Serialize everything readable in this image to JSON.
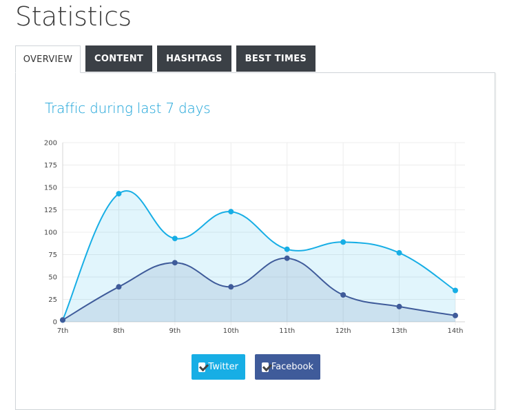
{
  "page": {
    "title": "Statistics"
  },
  "tabs": [
    {
      "label": "OVERVIEW",
      "active": true
    },
    {
      "label": "CONTENT",
      "active": false
    },
    {
      "label": "HASHTAGS",
      "active": false
    },
    {
      "label": "BEST TIMES",
      "active": false
    }
  ],
  "chart_title": "Traffic during last 7 days",
  "legend": {
    "twitter": "Twitter",
    "facebook": "Facebook"
  },
  "chart_data": {
    "type": "line",
    "title": "Traffic during last 7 days",
    "xlabel": "",
    "ylabel": "",
    "categories": [
      "7th",
      "8th",
      "9th",
      "10th",
      "11th",
      "12th",
      "13th",
      "14th"
    ],
    "ylim": [
      0,
      200
    ],
    "yticks": [
      0,
      25,
      50,
      75,
      100,
      125,
      150,
      175,
      200
    ],
    "grid": true,
    "smooth": true,
    "filled": true,
    "series": [
      {
        "name": "Twitter",
        "color": "#17aee5",
        "values": [
          2,
          143,
          93,
          123,
          81,
          89,
          77,
          35
        ]
      },
      {
        "name": "Facebook",
        "color": "#3f5b9a",
        "values": [
          2,
          39,
          66,
          39,
          71,
          30,
          17,
          7
        ]
      }
    ]
  }
}
